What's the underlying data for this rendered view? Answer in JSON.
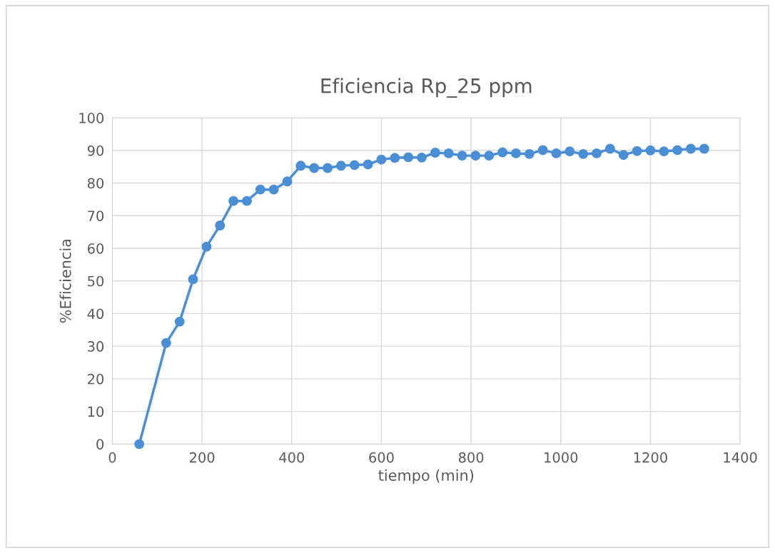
{
  "chart_data": {
    "type": "line",
    "title": "Eficiencia Rp_25 ppm",
    "xlabel": "tiempo (min)",
    "ylabel": "%Eficiencia",
    "x": [
      60,
      120,
      150,
      180,
      210,
      240,
      270,
      300,
      330,
      360,
      390,
      420,
      450,
      480,
      510,
      540,
      570,
      600,
      630,
      660,
      690,
      720,
      750,
      780,
      810,
      840,
      870,
      900,
      930,
      960,
      990,
      1020,
      1050,
      1080,
      1110,
      1140,
      1170,
      1200,
      1230,
      1260,
      1290,
      1320
    ],
    "series": [
      {
        "color": "#4a8fd6",
        "values": [
          0,
          31,
          37.5,
          50.5,
          60.5,
          67,
          74.5,
          74.5,
          78,
          78,
          80.5,
          85.3,
          84.6,
          84.6,
          85.3,
          85.5,
          85.7,
          87.2,
          87.7,
          87.9,
          87.8,
          89.3,
          89.1,
          88.4,
          88.4,
          88.4,
          89.4,
          89.1,
          88.9,
          90.1,
          89.1,
          89.7,
          88.9,
          89.1,
          90.5,
          88.6,
          89.8,
          90,
          89.7,
          90.1,
          90.5,
          90.5
        ]
      }
    ],
    "xlim": [
      0,
      1400
    ],
    "xticks": [
      0,
      200,
      400,
      600,
      800,
      1000,
      1200,
      1400
    ],
    "ylim": [
      0,
      100
    ],
    "yticks": [
      0,
      10,
      20,
      30,
      40,
      50,
      60,
      70,
      80,
      90,
      100
    ],
    "grid": true,
    "marker": "circle",
    "line_style": "solid"
  }
}
